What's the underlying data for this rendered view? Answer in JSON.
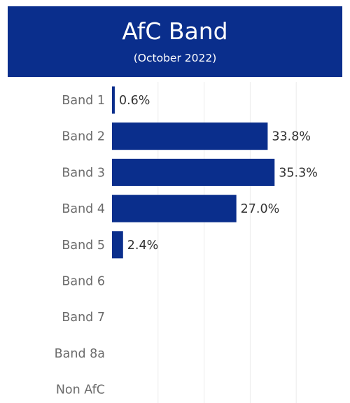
{
  "header": {
    "title": "AfC Band",
    "subtitle": "(October 2022)"
  },
  "colors": {
    "header_bg": "#0a2e8c",
    "bar": "#0a2e8c",
    "gridline": "#ececec"
  },
  "chart_data": {
    "type": "bar",
    "orientation": "horizontal",
    "title": "AfC Band",
    "subtitle": "(October 2022)",
    "categories": [
      "Band 1",
      "Band 2",
      "Band 3",
      "Band 4",
      "Band 5",
      "Band 6",
      "Band 7",
      "Band 8a",
      "Non AfC"
    ],
    "values": [
      0.6,
      33.8,
      35.3,
      27.0,
      2.4,
      null,
      null,
      null,
      null
    ],
    "value_labels": [
      "0.6%",
      "33.8%",
      "35.3%",
      "27.0%",
      "2.4%",
      "",
      "",
      "",
      ""
    ],
    "xlim": [
      0,
      50
    ],
    "grid": true,
    "legend": "none"
  }
}
